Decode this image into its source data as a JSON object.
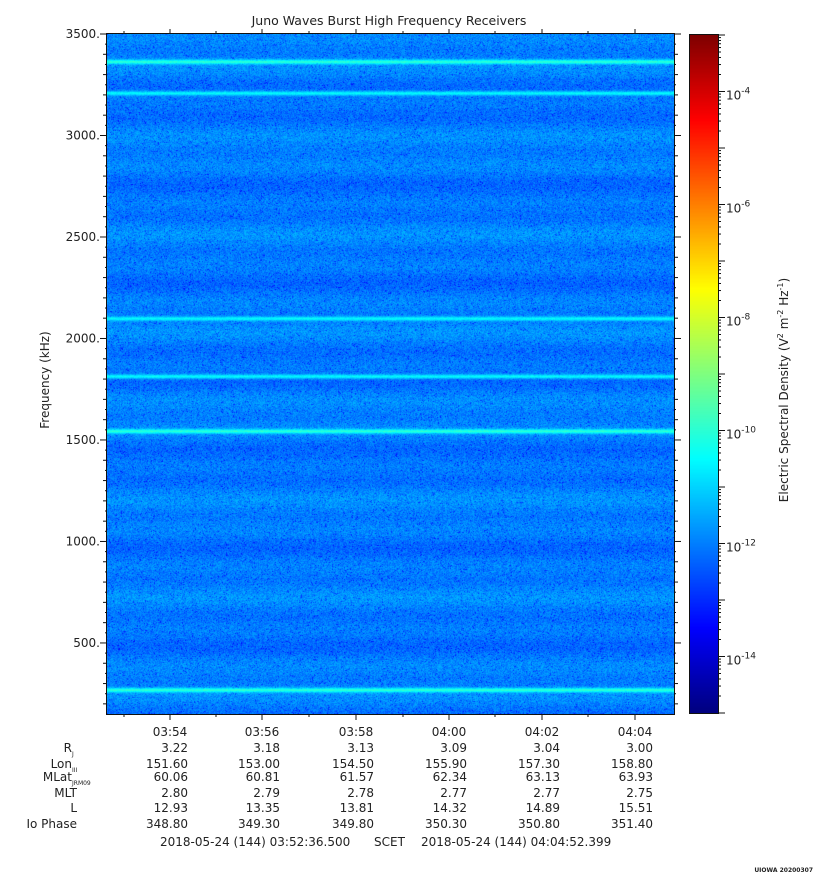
{
  "chart_data": {
    "type": "heatmap",
    "title": "Juno Waves Burst High Frequency Receivers",
    "ylabel": "Frequency (kHz)",
    "ylim": [
      150,
      3500
    ],
    "yticks": [
      500,
      1000,
      1500,
      2000,
      2500,
      3000,
      3500
    ],
    "ytick_labels": [
      "500.",
      "1000.",
      "1500.",
      "2000.",
      "2500.",
      "3000.",
      "3500."
    ],
    "xlim": [
      "03:52:36.500",
      "04:04:52.399"
    ],
    "xtick_labels": [
      "03:54",
      "03:56",
      "03:58",
      "04:00",
      "04:02",
      "04:04"
    ],
    "colorbar": {
      "label": "Electric Spectral Density (V² m⁻² Hz⁻¹)",
      "scale": "log",
      "range": [
        1e-15,
        0.001
      ],
      "tick_exponents": [
        -14,
        -12,
        -10,
        -8,
        -6,
        -4
      ],
      "colormap": [
        "#00007f",
        "#0000ff",
        "#007fff",
        "#00ffff",
        "#7fff7f",
        "#ffff00",
        "#ff7f00",
        "#ff0000",
        "#7f0000"
      ]
    },
    "background_level": 1e-12,
    "emission_bands_khz": [
      {
        "freq": 270,
        "level": 1e-10
      },
      {
        "freq": 1545,
        "level": 1e-10
      },
      {
        "freq": 3365,
        "level": 1e-10
      },
      {
        "freq": 3210,
        "level": 3e-11
      },
      {
        "freq": 2100,
        "level": 3e-11
      },
      {
        "freq": 1815,
        "level": 3e-11
      }
    ],
    "ephemeris": {
      "rows": [
        {
          "label": "R",
          "sub": "J",
          "values": [
            "3.22",
            "3.18",
            "3.13",
            "3.09",
            "3.04",
            "3.00"
          ]
        },
        {
          "label": "Lon",
          "sub": "III",
          "values": [
            "151.60",
            "153.00",
            "154.50",
            "155.90",
            "157.30",
            "158.80"
          ]
        },
        {
          "label": "MLat",
          "sub": "JRM09",
          "values": [
            "60.06",
            "60.81",
            "61.57",
            "62.34",
            "63.13",
            "63.93"
          ]
        },
        {
          "label": "MLT",
          "sub": "",
          "values": [
            "2.80",
            "2.79",
            "2.78",
            "2.77",
            "2.77",
            "2.75"
          ]
        },
        {
          "label": "L",
          "sub": "",
          "values": [
            "12.93",
            "13.35",
            "13.81",
            "14.32",
            "14.89",
            "15.51"
          ]
        },
        {
          "label": "Io Phase",
          "sub": "",
          "values": [
            "348.80",
            "349.30",
            "349.80",
            "350.30",
            "350.80",
            "351.40"
          ]
        }
      ]
    },
    "time_range": {
      "start": "2018-05-24 (144) 03:52:36.500",
      "frame": "SCET",
      "end": "2018-05-24 (144) 04:04:52.399"
    },
    "stamp": "UIOWA 20200307"
  }
}
